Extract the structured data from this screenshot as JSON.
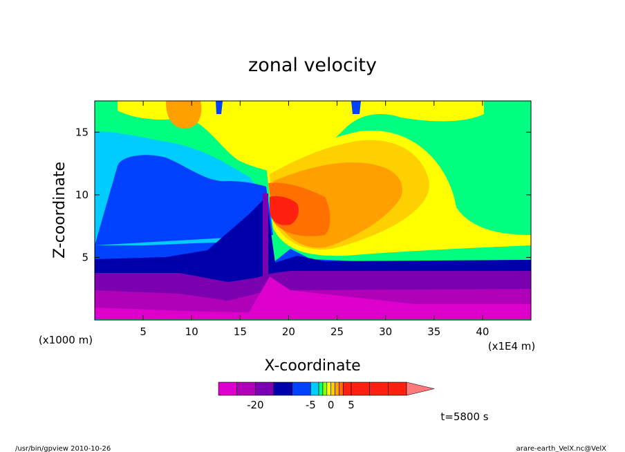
{
  "chart_data": {
    "type": "heatmap",
    "title": "zonal velocity",
    "xlabel": "X-coordinate",
    "ylabel": "Z-coordinate",
    "x_unit_label": "(x1E4 m)",
    "y_unit_label": "(x1000 m)",
    "x_ticks": [
      "5",
      "10",
      "15",
      "20",
      "25",
      "30",
      "35",
      "40"
    ],
    "x_tick_values": [
      5,
      10,
      15,
      20,
      25,
      30,
      35,
      40
    ],
    "y_ticks": [
      "5",
      "10",
      "15"
    ],
    "y_tick_values": [
      5,
      10,
      15
    ],
    "xlim": [
      0,
      45
    ],
    "ylim": [
      0,
      17.5
    ],
    "colorbar": {
      "tick_labels": [
        "-20",
        "-5",
        "0",
        "5"
      ],
      "tick_values": [
        -20,
        -5,
        0,
        5
      ],
      "levels": [
        -30,
        -25,
        -20,
        -15,
        -10,
        -5,
        -3,
        -2,
        -1,
        0,
        1,
        2,
        3,
        5,
        10,
        15,
        20
      ],
      "colors": [
        "#dd00cc",
        "#b000b8",
        "#7a00b0",
        "#0000aa",
        "#0040ff",
        "#00ccff",
        "#00ff80",
        "#90ff00",
        "#ffff00",
        "#ffd000",
        "#ffa000",
        "#ff7000",
        "#ff2010",
        "#ff2010",
        "#ff2010",
        "#ff2010",
        "#ff7a7a"
      ]
    }
  },
  "footer": {
    "time_label": "t=5800 s",
    "left_note": "/usr/bin/gpview  2010-10-26",
    "right_note": "arare-earth_VelX.nc@VelX"
  }
}
